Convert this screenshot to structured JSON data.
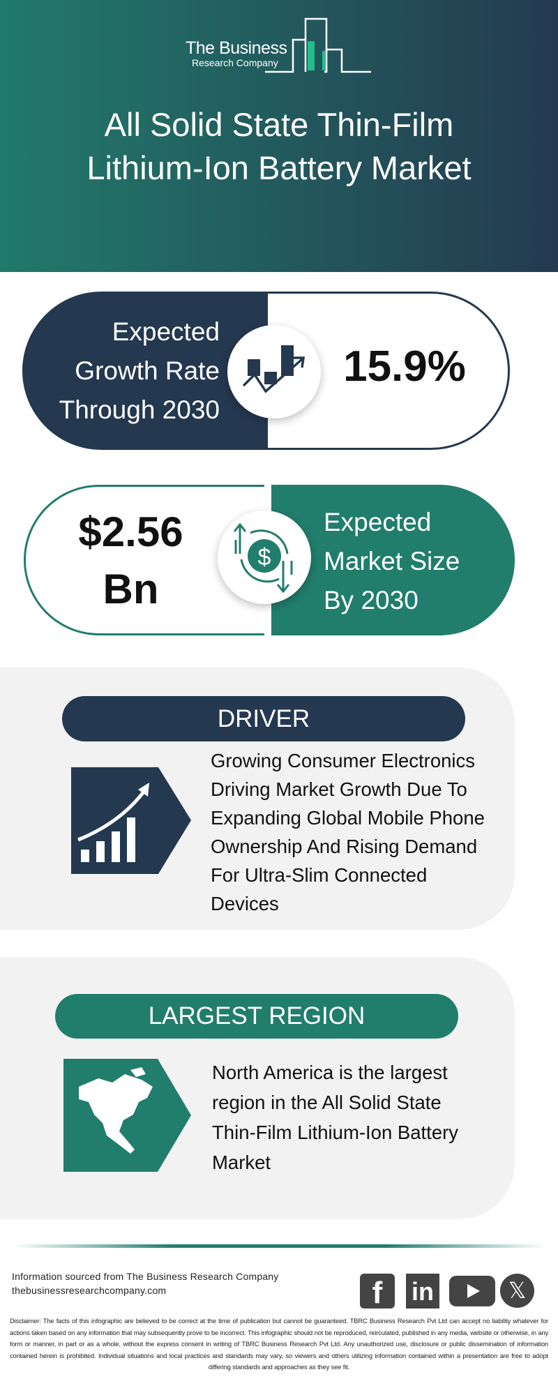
{
  "header": {
    "logo_line1": "The Business",
    "logo_line2": "Research Company",
    "title_line1": "All Solid State Thin-Film",
    "title_line2": "Lithium-Ion Battery Market"
  },
  "growth": {
    "label_lines": [
      "Expected",
      "Growth Rate",
      "Through 2030"
    ],
    "value": "15.9%",
    "icon": "growth-chart-icon"
  },
  "market_size": {
    "value_line1": "$2.56",
    "value_line2": "Bn",
    "label_lines": [
      "Expected",
      "Market Size",
      "By 2030"
    ],
    "icon": "dollar-cycle-icon"
  },
  "driver": {
    "heading": "DRIVER",
    "text_lines": [
      "Growing Consumer Electronics",
      "Driving Market Growth Due To",
      "Expanding Global Mobile Phone",
      "Ownership And Rising Demand",
      "For Ultra-Slim Connected",
      "Devices"
    ],
    "icon": "rising-bar-chart-icon"
  },
  "region": {
    "heading": "LARGEST REGION",
    "text_lines": [
      "North America is the largest",
      "region in the All Solid State",
      "Thin-Film Lithium-Ion Battery",
      "Market"
    ],
    "icon": "north-america-map-icon"
  },
  "footer": {
    "source": "Information sourced from The Business Research Company",
    "website": "thebusinessresearchcompany.com",
    "social": [
      "facebook",
      "linkedin",
      "youtube",
      "x"
    ],
    "disclaimer": "Disclaimer: The facts of this infographic are believed to be correct at the time of publication but cannot be guaranteed. TBRC Business Research Pvt Ltd can accept no liability whatever for actions taken based on any information that may subsequently prove to be incorrect. This infographic should not be reproduced, reirculated, published in any media, website or otherwise, in any form or manner, in part or as a whole, without the express consent in writing of TBRC Business Research Pvt Ltd. Any unauthorized use, disclosure or public dissemination of information contained herein is prohibited. Individual situations and local practices and standards may vary, so viewers and others utilizing information contained within a presentation are free to adopt differing standards and approaches as they see fit."
  },
  "colors": {
    "navy": "#243850",
    "green": "#217d6c",
    "accent": "#1fbf8a"
  }
}
